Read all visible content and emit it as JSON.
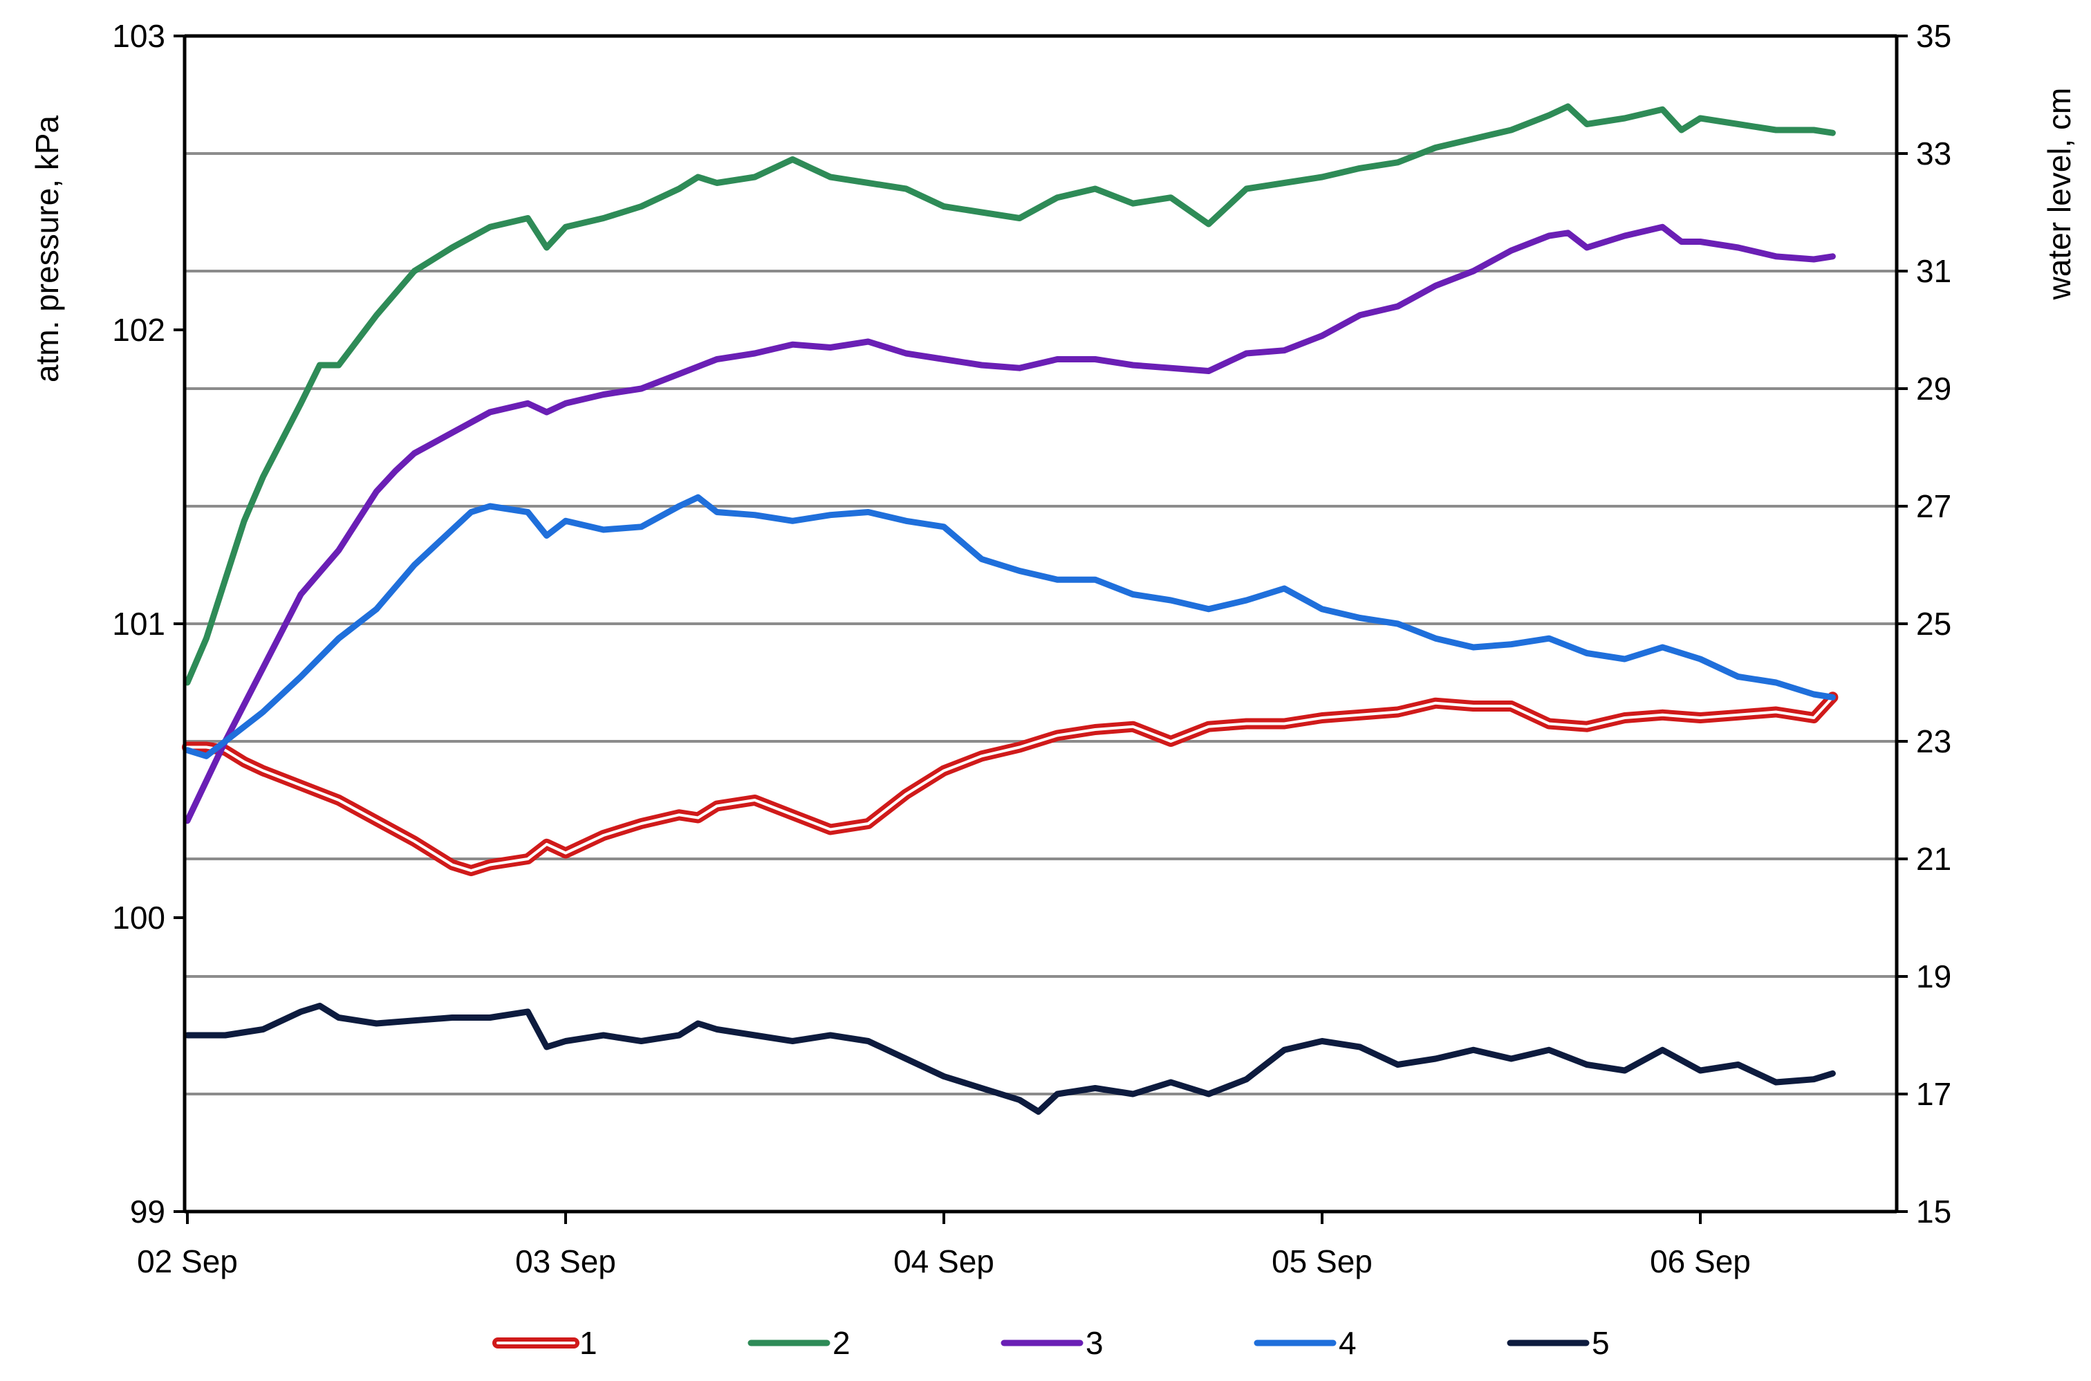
{
  "chart_data": {
    "type": "line",
    "title": "",
    "xlabel": "",
    "ylabel_left": "atm. pressure, kPa",
    "ylabel_right": "water level, cm",
    "x_axis": {
      "ticks": [
        "02 Sep",
        "03 Sep",
        "04 Sep",
        "05 Sep",
        "06 Sep"
      ],
      "range_days": [
        0,
        4.85
      ]
    },
    "y_left": {
      "range": [
        99,
        103
      ],
      "ticks": [
        "99",
        "100",
        "101",
        "102",
        "103"
      ]
    },
    "y_right": {
      "range": [
        15,
        35
      ],
      "ticks": [
        "15",
        "17",
        "19",
        "21",
        "23",
        "25",
        "27",
        "29",
        "31",
        "33",
        "35"
      ]
    },
    "grid": "horizontal, at right-axis ticks",
    "legend": "bottom",
    "colors": {
      "1": "#d01a1a",
      "2": "#2e8b57",
      "3": "#6a1fb5",
      "4": "#1f6fdb",
      "5": "#0d1b3e"
    },
    "series": [
      {
        "name": "1",
        "axis": "left",
        "style": "double",
        "x": [
          0,
          0.05,
          0.1,
          0.15,
          0.2,
          0.3,
          0.4,
          0.5,
          0.6,
          0.7,
          0.75,
          0.8,
          0.9,
          0.95,
          1.0,
          1.1,
          1.2,
          1.3,
          1.35,
          1.4,
          1.5,
          1.6,
          1.7,
          1.8,
          1.9,
          2.0,
          2.1,
          2.2,
          2.3,
          2.4,
          2.5,
          2.6,
          2.7,
          2.8,
          2.9,
          3.0,
          3.1,
          3.2,
          3.3,
          3.4,
          3.5,
          3.6,
          3.7,
          3.8,
          3.9,
          4.0,
          4.1,
          4.2,
          4.3,
          4.35
        ],
        "y": [
          100.58,
          100.58,
          100.57,
          100.53,
          100.5,
          100.45,
          100.4,
          100.33,
          100.26,
          100.18,
          100.16,
          100.18,
          100.2,
          100.25,
          100.22,
          100.28,
          100.32,
          100.35,
          100.34,
          100.38,
          100.4,
          100.35,
          100.3,
          100.32,
          100.42,
          100.5,
          100.55,
          100.58,
          100.62,
          100.64,
          100.65,
          100.6,
          100.65,
          100.66,
          100.66,
          100.68,
          100.69,
          100.7,
          100.73,
          100.72,
          100.72,
          100.66,
          100.65,
          100.68,
          100.69,
          100.68,
          100.69,
          100.7,
          100.68,
          100.75
        ]
      },
      {
        "name": "2",
        "axis": "left",
        "style": "single",
        "x": [
          0,
          0.05,
          0.1,
          0.15,
          0.2,
          0.3,
          0.35,
          0.4,
          0.5,
          0.6,
          0.7,
          0.8,
          0.9,
          0.95,
          1.0,
          1.1,
          1.2,
          1.3,
          1.35,
          1.4,
          1.5,
          1.55,
          1.6,
          1.65,
          1.7,
          1.8,
          1.9,
          2.0,
          2.1,
          2.2,
          2.3,
          2.4,
          2.5,
          2.6,
          2.7,
          2.8,
          2.9,
          3.0,
          3.1,
          3.2,
          3.3,
          3.4,
          3.5,
          3.6,
          3.65,
          3.7,
          3.8,
          3.9,
          3.95,
          4.0,
          4.1,
          4.2,
          4.3,
          4.35
        ],
        "y": [
          100.8,
          100.95,
          101.15,
          101.35,
          101.5,
          101.75,
          101.88,
          101.88,
          102.05,
          102.2,
          102.28,
          102.35,
          102.38,
          102.28,
          102.35,
          102.38,
          102.42,
          102.48,
          102.52,
          102.5,
          102.52,
          102.55,
          102.58,
          102.55,
          102.52,
          102.5,
          102.48,
          102.42,
          102.4,
          102.38,
          102.45,
          102.48,
          102.43,
          102.45,
          102.36,
          102.48,
          102.5,
          102.52,
          102.55,
          102.57,
          102.62,
          102.65,
          102.68,
          102.73,
          102.76,
          102.7,
          102.72,
          102.75,
          102.68,
          102.72,
          102.7,
          102.68,
          102.68,
          102.67
        ]
      },
      {
        "name": "3",
        "axis": "left",
        "style": "single",
        "x": [
          0,
          0.1,
          0.2,
          0.3,
          0.4,
          0.5,
          0.55,
          0.6,
          0.7,
          0.8,
          0.9,
          0.95,
          1.0,
          1.1,
          1.2,
          1.3,
          1.4,
          1.5,
          1.6,
          1.7,
          1.8,
          1.9,
          2.0,
          2.1,
          2.2,
          2.3,
          2.4,
          2.5,
          2.6,
          2.7,
          2.8,
          2.9,
          3.0,
          3.1,
          3.2,
          3.3,
          3.4,
          3.5,
          3.6,
          3.65,
          3.7,
          3.8,
          3.9,
          3.95,
          4.0,
          4.1,
          4.2,
          4.3,
          4.35
        ],
        "y": [
          100.33,
          100.6,
          100.85,
          101.1,
          101.25,
          101.45,
          101.52,
          101.58,
          101.65,
          101.72,
          101.75,
          101.72,
          101.75,
          101.78,
          101.8,
          101.85,
          101.9,
          101.92,
          101.95,
          101.94,
          101.96,
          101.92,
          101.9,
          101.88,
          101.87,
          101.9,
          101.9,
          101.88,
          101.87,
          101.86,
          101.92,
          101.93,
          101.98,
          102.05,
          102.08,
          102.15,
          102.2,
          102.27,
          102.32,
          102.33,
          102.28,
          102.32,
          102.35,
          102.3,
          102.3,
          102.28,
          102.25,
          102.24,
          102.25
        ]
      },
      {
        "name": "4",
        "axis": "left",
        "style": "single",
        "x": [
          0,
          0.05,
          0.1,
          0.2,
          0.3,
          0.4,
          0.5,
          0.6,
          0.7,
          0.75,
          0.8,
          0.9,
          0.95,
          1.0,
          1.1,
          1.2,
          1.3,
          1.35,
          1.4,
          1.5,
          1.6,
          1.7,
          1.8,
          1.9,
          2.0,
          2.1,
          2.2,
          2.3,
          2.4,
          2.5,
          2.6,
          2.7,
          2.8,
          2.9,
          3.0,
          3.1,
          3.2,
          3.3,
          3.4,
          3.5,
          3.6,
          3.7,
          3.8,
          3.9,
          4.0,
          4.1,
          4.2,
          4.3,
          4.35
        ],
        "y": [
          100.57,
          100.55,
          100.6,
          100.7,
          100.82,
          100.95,
          101.05,
          101.2,
          101.32,
          101.38,
          101.4,
          101.38,
          101.3,
          101.35,
          101.32,
          101.33,
          101.4,
          101.43,
          101.38,
          101.37,
          101.35,
          101.37,
          101.38,
          101.35,
          101.33,
          101.22,
          101.18,
          101.15,
          101.15,
          101.1,
          101.08,
          101.05,
          101.08,
          101.12,
          101.05,
          101.02,
          101.0,
          100.95,
          100.92,
          100.93,
          100.95,
          100.9,
          100.88,
          100.92,
          100.88,
          100.82,
          100.8,
          100.76,
          100.75
        ]
      },
      {
        "name": "5",
        "axis": "left",
        "style": "single",
        "x": [
          0,
          0.1,
          0.2,
          0.3,
          0.35,
          0.4,
          0.5,
          0.6,
          0.7,
          0.8,
          0.9,
          0.95,
          1.0,
          1.1,
          1.2,
          1.3,
          1.35,
          1.4,
          1.5,
          1.6,
          1.7,
          1.8,
          1.9,
          2.0,
          2.1,
          2.2,
          2.25,
          2.3,
          2.4,
          2.5,
          2.6,
          2.7,
          2.8,
          2.9,
          3.0,
          3.1,
          3.2,
          3.3,
          3.4,
          3.5,
          3.6,
          3.7,
          3.8,
          3.9,
          4.0,
          4.1,
          4.2,
          4.3,
          4.35
        ],
        "y": [
          99.6,
          99.6,
          99.62,
          99.68,
          99.7,
          99.66,
          99.64,
          99.65,
          99.66,
          99.66,
          99.68,
          99.56,
          99.58,
          99.6,
          99.58,
          99.6,
          99.64,
          99.62,
          99.6,
          99.58,
          99.6,
          99.58,
          99.52,
          99.46,
          99.42,
          99.38,
          99.34,
          99.4,
          99.42,
          99.4,
          99.44,
          99.4,
          99.45,
          99.55,
          99.58,
          99.56,
          99.5,
          99.52,
          99.55,
          99.52,
          99.55,
          99.5,
          99.48,
          99.55,
          99.48,
          99.5,
          99.44,
          99.45,
          99.47
        ]
      }
    ]
  }
}
